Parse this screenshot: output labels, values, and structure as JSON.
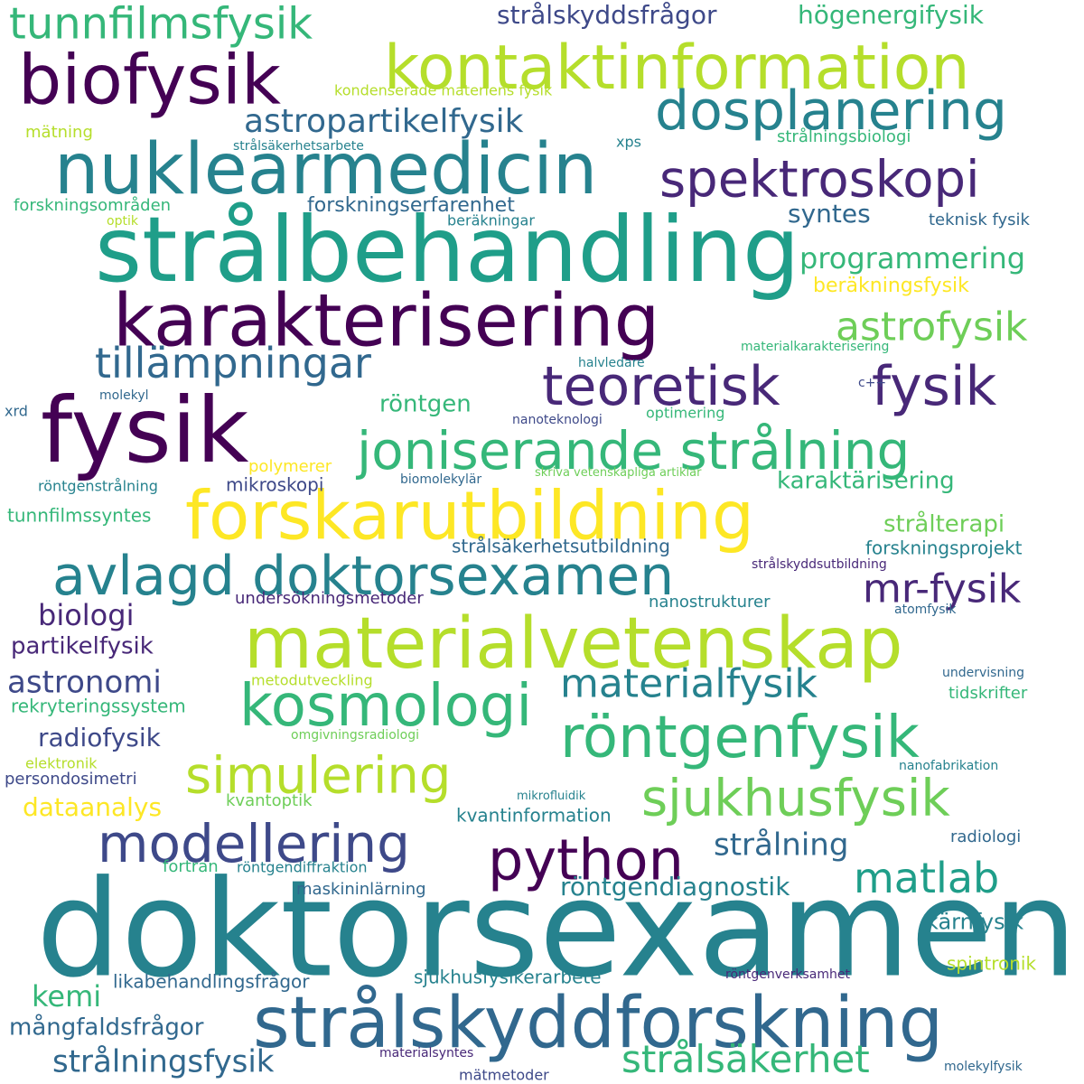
{
  "background": "#ffffff",
  "palette": [
    "#440154",
    "#482878",
    "#3e4989",
    "#31688e",
    "#26828e",
    "#1f9e89",
    "#35b779",
    "#6ece58",
    "#b5de2b",
    "#fde725"
  ],
  "words": [
    {
      "text": "doktorsexamen",
      "color": "#26828e"
    },
    {
      "text": "strålskyddforskning",
      "color": "#31688e"
    },
    {
      "text": "strålbehandling",
      "color": "#1f9e89"
    },
    {
      "text": "kontaktinformation",
      "color": "#b5de2b"
    },
    {
      "text": "fysik",
      "color": "#440154"
    },
    {
      "text": "materialvetenskap",
      "color": "#b5de2b"
    },
    {
      "text": "karakterisering",
      "color": "#440154"
    },
    {
      "text": "forskarutbildning",
      "color": "#fde725"
    },
    {
      "text": "nuklearmedicin",
      "color": "#26828e"
    },
    {
      "text": "joniserande strålning",
      "color": "#35b779"
    },
    {
      "text": "avlagd doktorsexamen",
      "color": "#26828e"
    },
    {
      "text": "biofysik",
      "color": "#440154"
    },
    {
      "text": "dosplanering",
      "color": "#26828e"
    },
    {
      "text": "röntgenfysik",
      "color": "#35b779"
    },
    {
      "text": "teoretisk",
      "color": "#482878"
    },
    {
      "text": "fysik",
      "color": "#482878"
    },
    {
      "text": "kosmologi",
      "color": "#35b779"
    },
    {
      "text": "spektroskopi",
      "color": "#482878"
    },
    {
      "text": "python",
      "color": "#440154"
    },
    {
      "text": "simulering",
      "color": "#b5de2b"
    },
    {
      "text": "modellering",
      "color": "#3e4989"
    },
    {
      "text": "sjukhusfysik",
      "color": "#6ece58"
    },
    {
      "text": "tunnfilmsfysik",
      "color": "#35b779"
    },
    {
      "text": "tillämpningar",
      "color": "#31688e"
    },
    {
      "text": "materialfysik",
      "color": "#26828e"
    },
    {
      "text": "astrofysik",
      "color": "#6ece58"
    },
    {
      "text": "matlab",
      "color": "#1f9e89"
    },
    {
      "text": "strålsäkerhet",
      "color": "#35b779"
    },
    {
      "text": "mr-fysik",
      "color": "#482878"
    },
    {
      "text": "astropartikelfysik",
      "color": "#31688e"
    },
    {
      "text": "programmering",
      "color": "#35b779"
    },
    {
      "text": "strålningsfysik",
      "color": "#31688e"
    },
    {
      "text": "strålning",
      "color": "#31688e"
    },
    {
      "text": "astronomi",
      "color": "#3e4989"
    },
    {
      "text": "röntgendiagnostik",
      "color": "#26828e"
    },
    {
      "text": "biologi",
      "color": "#482878"
    },
    {
      "text": "radiofysik",
      "color": "#3e4989"
    },
    {
      "text": "strålskyddsfrågor",
      "color": "#3e4989"
    },
    {
      "text": "karaktärisering",
      "color": "#35b779"
    },
    {
      "text": "partikelfysik",
      "color": "#482878"
    },
    {
      "text": "strålterapi",
      "color": "#6ece58"
    },
    {
      "text": "syntes",
      "color": "#31688e"
    },
    {
      "text": "högenergifysik",
      "color": "#35b779"
    },
    {
      "text": "mångfaldsfrågor",
      "color": "#31688e"
    },
    {
      "text": "kemi",
      "color": "#35b779"
    },
    {
      "text": "röntgen",
      "color": "#35b779"
    },
    {
      "text": "dataanalys",
      "color": "#fde725"
    },
    {
      "text": "beräkningsfysik",
      "color": "#fde725"
    },
    {
      "text": "kärnfysik",
      "color": "#26828e"
    },
    {
      "text": "forskningserfarenhet",
      "color": "#31688e"
    },
    {
      "text": "mikroskopi",
      "color": "#3e4989"
    },
    {
      "text": "kvantinformation",
      "color": "#26828e"
    },
    {
      "text": "undersökningsmetoder",
      "color": "#482878"
    },
    {
      "text": "strålsäkerhetsutbildning",
      "color": "#31688e"
    },
    {
      "text": "forskningsprojekt",
      "color": "#26828e"
    },
    {
      "text": "likabehandlingsfrågor",
      "color": "#31688e"
    },
    {
      "text": "sjukhusfysikerarbete",
      "color": "#26828e"
    },
    {
      "text": "maskininlärning",
      "color": "#31688e"
    },
    {
      "text": "polymerer",
      "color": "#fde725"
    },
    {
      "text": "tunnfilmssyntes",
      "color": "#35b779"
    },
    {
      "text": "rekryteringssystem",
      "color": "#35b779"
    },
    {
      "text": "kvantoptik",
      "color": "#6ece58"
    },
    {
      "text": "spintronik",
      "color": "#b5de2b"
    },
    {
      "text": "nanostrukturer",
      "color": "#26828e"
    },
    {
      "text": "persondosimetri",
      "color": "#3e4989"
    },
    {
      "text": "radiologi",
      "color": "#31688e"
    },
    {
      "text": "fortran",
      "color": "#35b779"
    },
    {
      "text": "röntgendiffraktion",
      "color": "#26828e"
    },
    {
      "text": "mätning",
      "color": "#b5de2b"
    },
    {
      "text": "kondenserade materiens fysik",
      "color": "#b5de2b"
    },
    {
      "text": "strålningsbiologi",
      "color": "#35b779"
    },
    {
      "text": "forskningsområden",
      "color": "#35b779"
    },
    {
      "text": "teknisk fysik",
      "color": "#31688e"
    },
    {
      "text": "beräkningar",
      "color": "#26828e"
    },
    {
      "text": "xps",
      "color": "#26828e"
    },
    {
      "text": "strålsäkerhetsarbete",
      "color": "#26828e"
    },
    {
      "text": "optik",
      "color": "#b5de2b"
    },
    {
      "text": "materialkarakterisering",
      "color": "#35b779"
    },
    {
      "text": "halvledare",
      "color": "#26828e"
    },
    {
      "text": "c++",
      "color": "#3e4989"
    },
    {
      "text": "molekyl",
      "color": "#31688e"
    },
    {
      "text": "xrd",
      "color": "#31688e"
    },
    {
      "text": "nanoteknologi",
      "color": "#3e4989"
    },
    {
      "text": "optimering",
      "color": "#35b779"
    },
    {
      "text": "röntgenstrålning",
      "color": "#26828e"
    },
    {
      "text": "biomolekylär",
      "color": "#31688e"
    },
    {
      "text": "skriva vetenskapliga artiklar",
      "color": "#6ece58"
    },
    {
      "text": "strålskyddsutbildning",
      "color": "#482878"
    },
    {
      "text": "atomfysik",
      "color": "#31688e"
    },
    {
      "text": "undervisning",
      "color": "#31688e"
    },
    {
      "text": "metodutveckling",
      "color": "#b5de2b"
    },
    {
      "text": "tidskrifter",
      "color": "#35b779"
    },
    {
      "text": "omgivningsradiologi",
      "color": "#6ece58"
    },
    {
      "text": "elektronik",
      "color": "#b5de2b"
    },
    {
      "text": "nanofabrikation",
      "color": "#26828e"
    },
    {
      "text": "mikrofluidik",
      "color": "#26828e"
    },
    {
      "text": "röntgenverksamhet",
      "color": "#482878"
    },
    {
      "text": "materialsyntes",
      "color": "#482878"
    },
    {
      "text": "mätmetoder",
      "color": "#3e4989"
    },
    {
      "text": "molekylfysik",
      "color": "#31688e"
    }
  ]
}
